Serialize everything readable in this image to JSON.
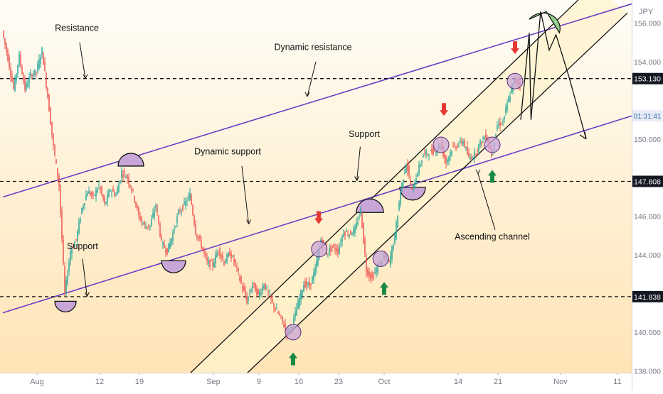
{
  "chart_data": {
    "type": "candlestick",
    "currency": "JPY",
    "price_axis": {
      "ticks": [
        156.0,
        154.0,
        152.0,
        150.0,
        148.0,
        146.0,
        144.0,
        142.0,
        140.0,
        138.0
      ],
      "tick_labels": [
        "156.000",
        "154.000",
        "",
        "150.000",
        "",
        "146.000",
        "144.000",
        "",
        "140.000",
        "138.000"
      ],
      "range": [
        137.9,
        157.2
      ]
    },
    "time_axis": {
      "ticks": [
        {
          "day": 0,
          "label": "Aug"
        },
        {
          "day": 11,
          "label": "12"
        },
        {
          "day": 18,
          "label": "19"
        },
        {
          "day": 31,
          "label": "Sep"
        },
        {
          "day": 39,
          "label": "9"
        },
        {
          "day": 46,
          "label": "16"
        },
        {
          "day": 53,
          "label": "23"
        },
        {
          "day": 61,
          "label": "Oct"
        },
        {
          "day": 74,
          "label": "14"
        },
        {
          "day": 81,
          "label": "21"
        },
        {
          "day": 92,
          "label": "Nov"
        },
        {
          "day": 102,
          "label": "11"
        }
      ],
      "range": [
        -6.5,
        104.5
      ],
      "last_candle_day": 84
    },
    "levels": [
      {
        "price": 153.13,
        "label": "153.130"
      },
      {
        "price": 147.808,
        "label": "147.808"
      },
      {
        "price": 141.838,
        "label": "141.838"
      }
    ],
    "current_price": {
      "price": 151.2,
      "label": "01:31:41"
    },
    "price_path": [
      [
        -6,
        155.6
      ],
      [
        -5,
        154.2
      ],
      [
        -4,
        152.6
      ],
      [
        -3,
        154.3
      ],
      [
        -2,
        152.6
      ],
      [
        -1,
        153.3
      ],
      [
        0,
        153.5
      ],
      [
        1,
        154.6
      ],
      [
        2,
        152.2
      ],
      [
        3,
        149.6
      ],
      [
        4,
        147.6
      ],
      [
        5,
        142.0
      ],
      [
        6,
        144.2
      ],
      [
        7,
        144.8
      ],
      [
        8,
        146.4
      ],
      [
        9,
        147.3
      ],
      [
        10,
        147.0
      ],
      [
        11,
        147.6
      ],
      [
        12,
        146.6
      ],
      [
        13,
        147.4
      ],
      [
        14,
        147.1
      ],
      [
        15,
        148.3
      ],
      [
        16,
        148.0
      ],
      [
        17,
        147.2
      ],
      [
        18,
        146.0
      ],
      [
        19,
        145.5
      ],
      [
        20,
        145.5
      ],
      [
        21,
        146.6
      ],
      [
        22,
        144.6
      ],
      [
        23,
        144.2
      ],
      [
        24,
        145.1
      ],
      [
        25,
        146.2
      ],
      [
        26,
        146.6
      ],
      [
        27,
        147.1
      ],
      [
        28,
        145.2
      ],
      [
        29,
        144.5
      ],
      [
        30,
        143.6
      ],
      [
        31,
        143.5
      ],
      [
        32,
        144.3
      ],
      [
        33,
        143.6
      ],
      [
        34,
        144.1
      ],
      [
        35,
        143.5
      ],
      [
        36,
        142.5
      ],
      [
        37,
        141.6
      ],
      [
        38,
        142.5
      ],
      [
        39,
        141.9
      ],
      [
        40,
        142.5
      ],
      [
        41,
        141.8
      ],
      [
        42,
        141.2
      ],
      [
        43,
        140.7
      ],
      [
        44,
        140.0
      ],
      [
        45,
        140.4
      ],
      [
        46,
        141.5
      ],
      [
        47,
        142.5
      ],
      [
        48,
        142.4
      ],
      [
        49,
        143.2
      ],
      [
        50,
        144.8
      ],
      [
        51,
        144.1
      ],
      [
        52,
        144.4
      ],
      [
        53,
        144.2
      ],
      [
        54,
        145.2
      ],
      [
        55,
        145.1
      ],
      [
        56,
        145.3
      ],
      [
        57,
        146.3
      ],
      [
        58,
        143.2
      ],
      [
        59,
        142.8
      ],
      [
        60,
        143.4
      ],
      [
        61,
        143.9
      ],
      [
        62,
        143.6
      ],
      [
        63,
        145.0
      ],
      [
        64,
        147.3
      ],
      [
        65,
        148.8
      ],
      [
        66,
        147.3
      ],
      [
        67,
        148.3
      ],
      [
        68,
        149.2
      ],
      [
        69,
        149.3
      ],
      [
        70,
        149.4
      ],
      [
        71,
        149.7
      ],
      [
        72,
        148.8
      ],
      [
        73,
        149.5
      ],
      [
        74,
        149.7
      ],
      [
        75,
        149.9
      ],
      [
        76,
        149.0
      ],
      [
        77,
        149.2
      ],
      [
        78,
        149.8
      ],
      [
        79,
        150.2
      ],
      [
        80,
        149.2
      ],
      [
        81,
        150.7
      ],
      [
        82,
        150.9
      ],
      [
        83,
        152.1
      ],
      [
        84,
        153.0
      ],
      [
        85,
        152.9
      ]
    ],
    "annotations": [
      {
        "text": "Resistance",
        "day": 7,
        "price": 155.6
      },
      {
        "text": "Dynamic resistance",
        "day": 48.5,
        "price": 154.6
      },
      {
        "text": "Support",
        "day": 57.5,
        "price": 150.1
      },
      {
        "text": "Dynamic support",
        "day": 33.5,
        "price": 149.2
      },
      {
        "text": "Support",
        "day": 8,
        "price": 144.3
      },
      {
        "text": "Ascending channel",
        "day": 80,
        "price": 144.8
      }
    ]
  },
  "colors": {
    "bull": "#26a69a",
    "bear": "#ef5350",
    "purple_line": "#6a3fc6",
    "channel_fill": "#fff3cc",
    "highlight_circle": "#c8a6d8",
    "green_bubble": "#8fd18a",
    "arrow_up": "#178a45",
    "arrow_down": "#e53935"
  }
}
